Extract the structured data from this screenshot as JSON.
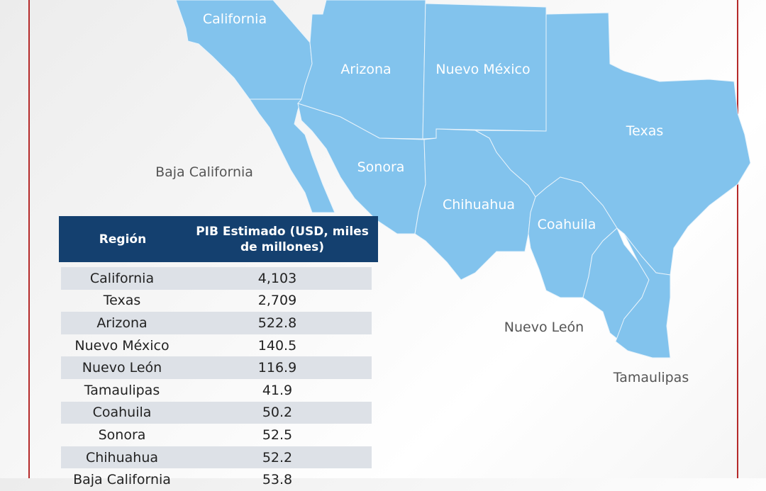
{
  "map": {
    "fill_color": "#82c3ed",
    "labels": {
      "california": "California",
      "arizona": "Arizona",
      "nuevo_mexico": "Nuevo México",
      "texas": "Texas",
      "baja_california": "Baja California",
      "sonora": "Sonora",
      "chihuahua": "Chihuahua",
      "coahuila": "Coahuila",
      "nuevo_leon": "Nuevo León",
      "tamaulipas": "Tamaulipas"
    }
  },
  "table": {
    "header_color": "#14406f",
    "headers": [
      "Región",
      "PIB Estimado (USD, miles de millones)"
    ],
    "rows": [
      {
        "region": "California",
        "value": "4,103"
      },
      {
        "region": "Texas",
        "value": "2,709"
      },
      {
        "region": "Arizona",
        "value": "522.8"
      },
      {
        "region": "Nuevo México",
        "value": "140.5"
      },
      {
        "region": "Nuevo León",
        "value": "116.9"
      },
      {
        "region": "Tamaulipas",
        "value": "41.9"
      },
      {
        "region": "Coahuila",
        "value": "50.2"
      },
      {
        "region": "Sonora",
        "value": "52.5"
      },
      {
        "region": "Chihuahua",
        "value": "52.2"
      },
      {
        "region": "Baja California",
        "value": "53.8"
      }
    ]
  }
}
